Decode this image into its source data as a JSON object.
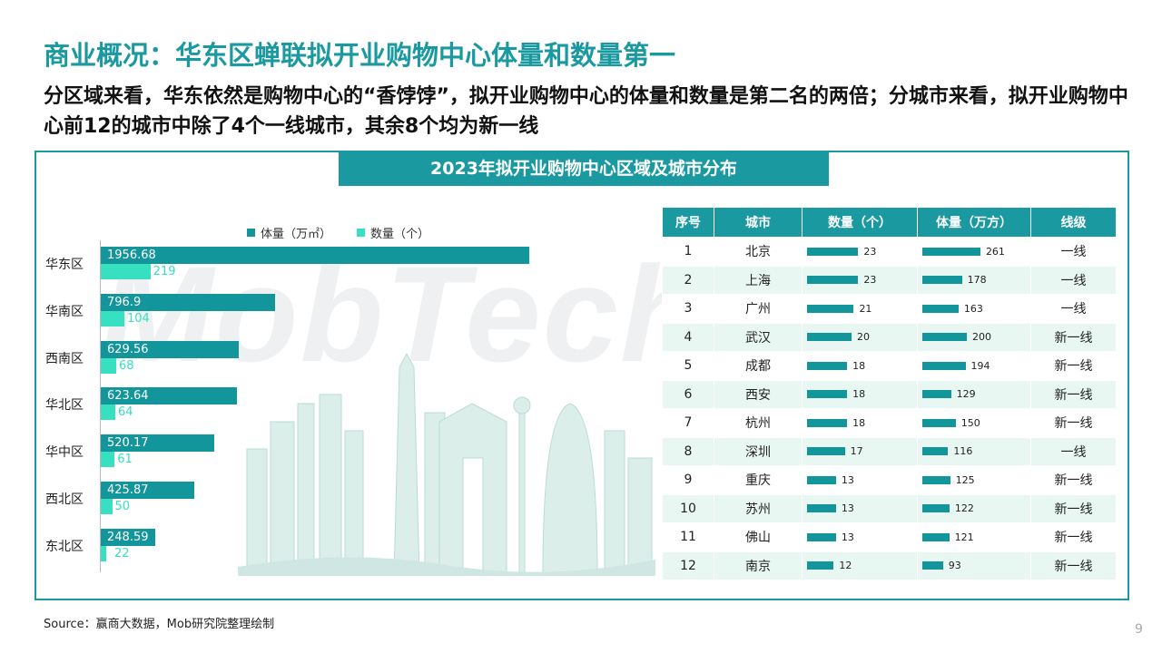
{
  "header": {
    "title": "商业概况：华东区蝉联拟开业购物中心体量和数量第一",
    "subtitle": "分区域来看，华东依然是购物中心的“香饽饽”，拟开业购物中心的体量和数量是第二名的两倍；分城市来看，拟开业购物中心前12的城市中除了4个一线城市，其余8个均为新一线"
  },
  "banner": "2023年拟开业购物中心区域及城市分布",
  "watermark": "MobTech",
  "colors": {
    "accent": "#1a9aa0",
    "volume_bar": "#12959b",
    "count_bar": "#36e0c0",
    "row_alt": "#e8f7f2"
  },
  "chart_data": [
    {
      "type": "bar",
      "orientation": "horizontal",
      "categories": [
        "华东区",
        "华南区",
        "西南区",
        "华北区",
        "华中区",
        "西北区",
        "东北区"
      ],
      "series": [
        {
          "name": "体量（万㎡）",
          "values": [
            1956.68,
            796.9,
            629.56,
            623.64,
            520.17,
            425.87,
            248.59
          ],
          "labels": [
            "1956.68",
            "796.9",
            "629.56",
            "623.64",
            "520.17",
            "425.87",
            "248.59"
          ]
        },
        {
          "name": "数量（个）",
          "values": [
            219,
            104,
            68,
            64,
            61,
            50,
            22
          ]
        }
      ],
      "legend": "top"
    },
    {
      "type": "table",
      "columns": [
        "序号",
        "城市",
        "数量（个）",
        "体量（万方）",
        "线级"
      ],
      "rows": [
        {
          "rank": "1",
          "city": "北京",
          "count": 23,
          "volume": 261,
          "tier": "一线"
        },
        {
          "rank": "2",
          "city": "上海",
          "count": 23,
          "volume": 178,
          "tier": "一线"
        },
        {
          "rank": "3",
          "city": "广州",
          "count": 21,
          "volume": 163,
          "tier": "一线"
        },
        {
          "rank": "4",
          "city": "武汉",
          "count": 20,
          "volume": 200,
          "tier": "新一线"
        },
        {
          "rank": "5",
          "city": "成都",
          "count": 18,
          "volume": 194,
          "tier": "新一线"
        },
        {
          "rank": "6",
          "city": "西安",
          "count": 18,
          "volume": 129,
          "tier": "新一线"
        },
        {
          "rank": "7",
          "city": "杭州",
          "count": 18,
          "volume": 150,
          "tier": "新一线"
        },
        {
          "rank": "8",
          "city": "深圳",
          "count": 17,
          "volume": 116,
          "tier": "一线"
        },
        {
          "rank": "9",
          "city": "重庆",
          "count": 13,
          "volume": 125,
          "tier": "新一线"
        },
        {
          "rank": "10",
          "city": "苏州",
          "count": 13,
          "volume": 122,
          "tier": "新一线"
        },
        {
          "rank": "11",
          "city": "佛山",
          "count": 13,
          "volume": 121,
          "tier": "新一线"
        },
        {
          "rank": "12",
          "city": "南京",
          "count": 12,
          "volume": 93,
          "tier": "新一线"
        }
      ]
    }
  ],
  "footer": {
    "source": "Source：赢商大数据，Mob研究院整理绘制",
    "page": "9"
  }
}
